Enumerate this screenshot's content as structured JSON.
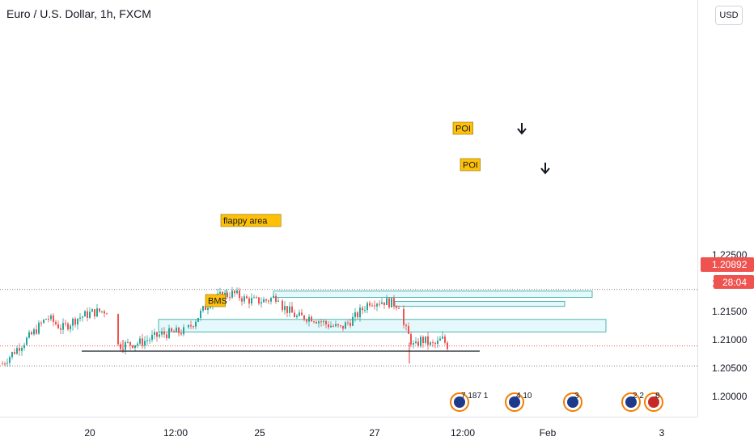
{
  "header": {
    "title": "Euro / U.S. Dollar, 1h, FXCM",
    "currency_button": "USD"
  },
  "price_axis": {
    "ticks": [
      "1.22500",
      "1.22000",
      "1.21500",
      "1.21000",
      "1.20500",
      "1.20000"
    ],
    "current_price": "1.20892",
    "countdown": "28:04"
  },
  "time_axis": {
    "ticks": [
      "20",
      "12:00",
      "25",
      "27",
      "12:00",
      "Feb",
      "3"
    ]
  },
  "annotations": {
    "poi_1": "POI",
    "poi_2": "POI",
    "flappy": "flappy area",
    "bms": "BMS"
  },
  "event_markers": [
    "7 187 1",
    "4 10",
    "3",
    "2 2",
    "8"
  ],
  "colors": {
    "up": "#26a69a",
    "down": "#ef5350",
    "zone_fill": "#e0f7fa",
    "zone_border": "#26a69a",
    "label_fill": "#ffc107",
    "price_badge": "#ef5350",
    "grid_dotted": "#787b86"
  },
  "chart_data": {
    "type": "candlestick",
    "symbol": "Euro / U.S. Dollar",
    "interval": "1h",
    "ylim": [
      1.1985,
      1.2261
    ],
    "levels": {
      "upper_dotted": 1.2189,
      "lower_dotted": 1.2054,
      "bms_line": 1.208,
      "last_price": 1.20892
    },
    "zones": [
      {
        "label": "POI",
        "low": 1.2175,
        "high": 1.2186
      },
      {
        "label": "POI",
        "low": 1.2159,
        "high": 1.2168
      },
      {
        "label": "flappy area",
        "low": 1.2114,
        "high": 1.2136
      }
    ],
    "close_path": [
      [
        1.2058,
        1.2085,
        1.211,
        1.214,
        1.212,
        1.2138,
        1.2148,
        1.2152
      ],
      [
        1.209,
        1.2095,
        1.211,
        1.2115
      ],
      [
        1.212,
        1.2145,
        1.217,
        1.2178,
        1.2182,
        1.2172,
        1.2168,
        1.217,
        1.2178
      ],
      [
        1.216,
        1.214,
        1.214,
        1.2128,
        1.212,
        1.214,
        1.2168,
        1.2168,
        1.2162
      ],
      [
        1.2125,
        1.2105,
        1.2085,
        1.21,
        1.2098,
        1.209,
        1.2092,
        1.2102,
        1.209
      ]
    ]
  }
}
